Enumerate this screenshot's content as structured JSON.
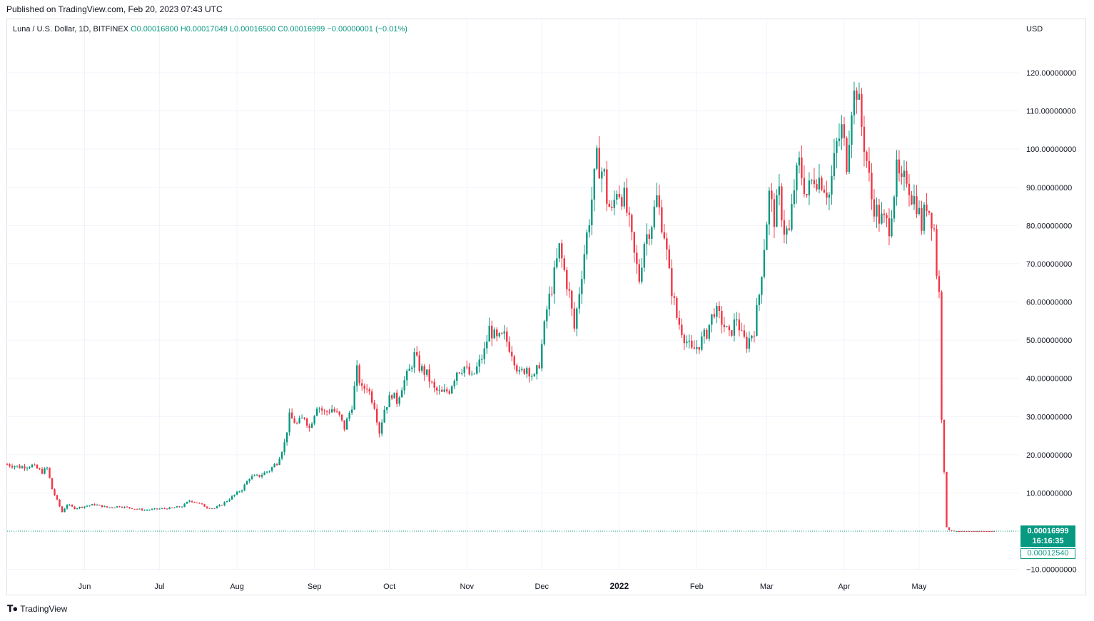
{
  "header": {
    "published": "Published on TradingView.com, Feb 20, 2023 07:43 UTC"
  },
  "legend": {
    "symbol": "Luna / U.S. Dollar, 1D, BITFINEX",
    "open": "O0.00016800",
    "high": "H0.00017049",
    "low": "L0.00016500",
    "close": "C0.00016999",
    "change": "−0.00000001 (−0.01%)"
  },
  "currency": "USD",
  "price_tag": {
    "last_price": "0.00016999",
    "countdown": "16:16:35",
    "low_price": "0.00012540"
  },
  "footer": {
    "brand": "TradingView"
  },
  "colors": {
    "up": "#089981",
    "down": "#f23645",
    "grid": "#f0f3fa"
  },
  "chart_data": {
    "type": "candlestick",
    "title": "Luna / U.S. Dollar, 1D, BITFINEX",
    "y_axis": {
      "side": "right",
      "range": [
        -10,
        130
      ],
      "ticks": [
        -10,
        10,
        20,
        30,
        40,
        50,
        60,
        70,
        80,
        90,
        100,
        110,
        120
      ],
      "tick_labels": [
        "−10.00000000",
        "10.00000000",
        "20.00000000",
        "30.00000000",
        "40.00000000",
        "50.00000000",
        "60.00000000",
        "70.00000000",
        "80.00000000",
        "90.00000000",
        "100.00000000",
        "110.00000000",
        "120.00000000"
      ]
    },
    "x_axis": {
      "start": "2021-05-01",
      "end": "2022-06-10",
      "ticks": [
        {
          "date": "2021-06-01",
          "label": "Jun",
          "bold": false
        },
        {
          "date": "2021-07-01",
          "label": "Jul",
          "bold": false
        },
        {
          "date": "2021-08-01",
          "label": "Aug",
          "bold": false
        },
        {
          "date": "2021-09-01",
          "label": "Sep",
          "bold": false
        },
        {
          "date": "2021-10-01",
          "label": "Oct",
          "bold": false
        },
        {
          "date": "2021-11-01",
          "label": "Nov",
          "bold": false
        },
        {
          "date": "2021-12-01",
          "label": "Dec",
          "bold": false
        },
        {
          "date": "2022-01-01",
          "label": "2022",
          "bold": true
        },
        {
          "date": "2022-02-01",
          "label": "Feb",
          "bold": false
        },
        {
          "date": "2022-03-01",
          "label": "Mar",
          "bold": false
        },
        {
          "date": "2022-04-01",
          "label": "Apr",
          "bold": false
        },
        {
          "date": "2022-05-01",
          "label": "May",
          "bold": false
        }
      ]
    },
    "last_price": 0.00016999,
    "close_path": [
      [
        "2021-05-01",
        17.5
      ],
      [
        "2021-05-06",
        16.8
      ],
      [
        "2021-05-11",
        17.2
      ],
      [
        "2021-05-15",
        15.5
      ],
      [
        "2021-05-17",
        16.5
      ],
      [
        "2021-05-19",
        11
      ],
      [
        "2021-05-21",
        8
      ],
      [
        "2021-05-23",
        5
      ],
      [
        "2021-05-25",
        7
      ],
      [
        "2021-05-28",
        6
      ],
      [
        "2021-06-01",
        6.5
      ],
      [
        "2021-06-05",
        7
      ],
      [
        "2021-06-10",
        6.2
      ],
      [
        "2021-06-15",
        6.5
      ],
      [
        "2021-06-20",
        6
      ],
      [
        "2021-06-25",
        5.5
      ],
      [
        "2021-06-30",
        5.8
      ],
      [
        "2021-07-05",
        6
      ],
      [
        "2021-07-10",
        6.5
      ],
      [
        "2021-07-13",
        8
      ],
      [
        "2021-07-16",
        7.5
      ],
      [
        "2021-07-20",
        6.2
      ],
      [
        "2021-07-23",
        6
      ],
      [
        "2021-07-26",
        7
      ],
      [
        "2021-07-30",
        9
      ],
      [
        "2021-08-03",
        11
      ],
      [
        "2021-08-06",
        14
      ],
      [
        "2021-08-10",
        14.5
      ],
      [
        "2021-08-14",
        16
      ],
      [
        "2021-08-17",
        18
      ],
      [
        "2021-08-20",
        23
      ],
      [
        "2021-08-22",
        30
      ],
      [
        "2021-08-25",
        28
      ],
      [
        "2021-08-28",
        30
      ],
      [
        "2021-08-30",
        27
      ],
      [
        "2021-09-02",
        33
      ],
      [
        "2021-09-05",
        31
      ],
      [
        "2021-09-08",
        32
      ],
      [
        "2021-09-11",
        30
      ],
      [
        "2021-09-13",
        27
      ],
      [
        "2021-09-16",
        33
      ],
      [
        "2021-09-18",
        42
      ],
      [
        "2021-09-20",
        37
      ],
      [
        "2021-09-22",
        38
      ],
      [
        "2021-09-25",
        33
      ],
      [
        "2021-09-27",
        26
      ],
      [
        "2021-09-29",
        32
      ],
      [
        "2021-10-02",
        36
      ],
      [
        "2021-10-04",
        34
      ],
      [
        "2021-10-06",
        38
      ],
      [
        "2021-10-09",
        42
      ],
      [
        "2021-10-11",
        46
      ],
      [
        "2021-10-13",
        43
      ],
      [
        "2021-10-16",
        41
      ],
      [
        "2021-10-19",
        37
      ],
      [
        "2021-10-22",
        36
      ],
      [
        "2021-10-25",
        37
      ],
      [
        "2021-10-28",
        42
      ],
      [
        "2021-10-31",
        43
      ],
      [
        "2021-11-03",
        40
      ],
      [
        "2021-11-06",
        44
      ],
      [
        "2021-11-08",
        47
      ],
      [
        "2021-11-10",
        53
      ],
      [
        "2021-11-13",
        50
      ],
      [
        "2021-11-16",
        51
      ],
      [
        "2021-11-19",
        47
      ],
      [
        "2021-11-22",
        41
      ],
      [
        "2021-11-25",
        43
      ],
      [
        "2021-11-28",
        40
      ],
      [
        "2021-11-30",
        44
      ],
      [
        "2021-12-03",
        58
      ],
      [
        "2021-12-06",
        67
      ],
      [
        "2021-12-08",
        74
      ],
      [
        "2021-12-10",
        68
      ],
      [
        "2021-12-12",
        62
      ],
      [
        "2021-12-14",
        53
      ],
      [
        "2021-12-16",
        63
      ],
      [
        "2021-12-18",
        73
      ],
      [
        "2021-12-20",
        82
      ],
      [
        "2021-12-23",
        97
      ],
      [
        "2021-12-26",
        93
      ],
      [
        "2021-12-27",
        87
      ],
      [
        "2021-12-29",
        83
      ],
      [
        "2021-12-31",
        90
      ],
      [
        "2022-01-03",
        87
      ],
      [
        "2022-01-05",
        80
      ],
      [
        "2022-01-07",
        72
      ],
      [
        "2022-01-09",
        66
      ],
      [
        "2022-01-11",
        76
      ],
      [
        "2022-01-14",
        81
      ],
      [
        "2022-01-16",
        87
      ],
      [
        "2022-01-19",
        78
      ],
      [
        "2022-01-21",
        67
      ],
      [
        "2022-01-24",
        56
      ],
      [
        "2022-01-27",
        51
      ],
      [
        "2022-01-30",
        47
      ],
      [
        "2022-02-02",
        49
      ],
      [
        "2022-02-05",
        52
      ],
      [
        "2022-02-08",
        58
      ],
      [
        "2022-02-11",
        55
      ],
      [
        "2022-02-14",
        51
      ],
      [
        "2022-02-17",
        56
      ],
      [
        "2022-02-19",
        51
      ],
      [
        "2022-02-21",
        49
      ],
      [
        "2022-02-24",
        53
      ],
      [
        "2022-02-26",
        62
      ],
      [
        "2022-02-28",
        75
      ],
      [
        "2022-03-02",
        88
      ],
      [
        "2022-03-04",
        82
      ],
      [
        "2022-03-06",
        88
      ],
      [
        "2022-03-08",
        79
      ],
      [
        "2022-03-10",
        78
      ],
      [
        "2022-03-12",
        90
      ],
      [
        "2022-03-14",
        96
      ],
      [
        "2022-03-17",
        88
      ],
      [
        "2022-03-20",
        93
      ],
      [
        "2022-03-23",
        92
      ],
      [
        "2022-03-26",
        88
      ],
      [
        "2022-03-29",
        101
      ],
      [
        "2022-03-31",
        105
      ],
      [
        "2022-04-02",
        97
      ],
      [
        "2022-04-04",
        112
      ],
      [
        "2022-04-06",
        116
      ],
      [
        "2022-04-08",
        106
      ],
      [
        "2022-04-10",
        97
      ],
      [
        "2022-04-12",
        87
      ],
      [
        "2022-04-15",
        82
      ],
      [
        "2022-04-17",
        81
      ],
      [
        "2022-04-19",
        80
      ],
      [
        "2022-04-22",
        94
      ],
      [
        "2022-04-24",
        90
      ],
      [
        "2022-04-26",
        93
      ],
      [
        "2022-04-28",
        88
      ],
      [
        "2022-04-30",
        86
      ],
      [
        "2022-05-02",
        80
      ],
      [
        "2022-05-04",
        86
      ],
      [
        "2022-05-06",
        82
      ],
      [
        "2022-05-07",
        79
      ],
      [
        "2022-05-08",
        68
      ],
      [
        "2022-05-09",
        62
      ],
      [
        "2022-05-10",
        30
      ],
      [
        "2022-05-11",
        16
      ],
      [
        "2022-05-12",
        1
      ],
      [
        "2022-05-13",
        0.3
      ],
      [
        "2022-05-15",
        0.002
      ],
      [
        "2022-06-10",
        0.00017
      ]
    ]
  }
}
